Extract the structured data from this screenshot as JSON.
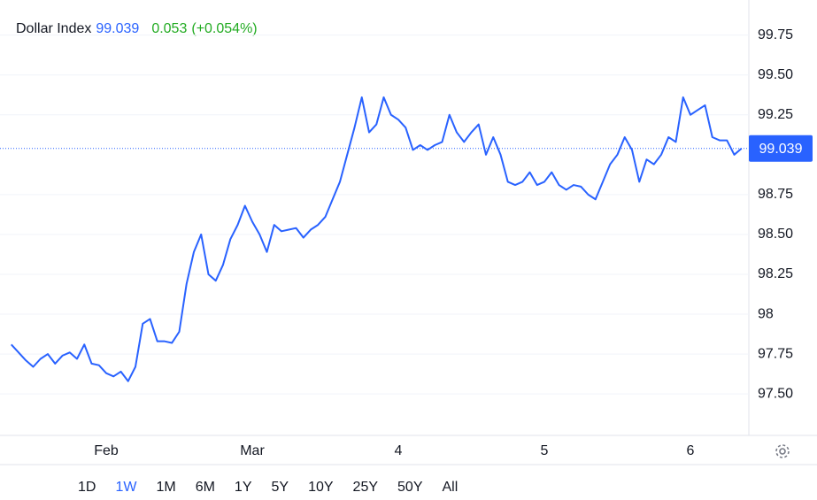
{
  "chart_data": {
    "type": "line",
    "title": "Dollar Index",
    "price": 99.039,
    "change": "0.053",
    "change_pct": "(+0.054%)",
    "color": "#2962ff",
    "categories": [
      null,
      null,
      null,
      null,
      null,
      null,
      null,
      null,
      null,
      null,
      null,
      null,
      null,
      "Feb",
      null,
      null,
      null,
      null,
      null,
      null,
      null,
      null,
      null,
      null,
      null,
      null,
      null,
      null,
      null,
      null,
      null,
      null,
      null,
      "Mar",
      null,
      null,
      null,
      null,
      null,
      null,
      null,
      null,
      null,
      null,
      null,
      null,
      null,
      null,
      null,
      null,
      null,
      null,
      null,
      "4",
      null,
      null,
      null,
      null,
      null,
      null,
      null,
      null,
      null,
      null,
      null,
      null,
      null,
      null,
      null,
      null,
      null,
      null,
      null,
      "5",
      null,
      null,
      null,
      null,
      null,
      null,
      null,
      null,
      null,
      null,
      null,
      null,
      null,
      null,
      null,
      null,
      null,
      null,
      null,
      "6",
      null,
      null,
      null,
      null,
      null,
      null,
      null
    ],
    "values": [
      97.81,
      97.76,
      97.71,
      97.67,
      97.72,
      97.75,
      97.69,
      97.74,
      97.76,
      97.72,
      97.81,
      97.69,
      97.68,
      97.63,
      97.61,
      97.64,
      97.58,
      97.67,
      97.94,
      97.97,
      97.83,
      97.83,
      97.82,
      97.89,
      98.19,
      98.39,
      98.5,
      98.25,
      98.21,
      98.31,
      98.47,
      98.56,
      98.68,
      98.58,
      98.5,
      98.39,
      98.56,
      98.52,
      98.53,
      98.54,
      98.48,
      98.53,
      98.56,
      98.61,
      98.72,
      98.83,
      99.0,
      99.17,
      99.36,
      99.14,
      99.19,
      99.36,
      99.25,
      99.22,
      99.17,
      99.03,
      99.06,
      99.03,
      99.06,
      99.08,
      99.25,
      99.14,
      99.08,
      99.14,
      99.19,
      99.0,
      99.11,
      99.0,
      98.83,
      98.81,
      98.83,
      98.89,
      98.81,
      98.83,
      98.89,
      98.81,
      98.78,
      98.81,
      98.8,
      98.75,
      98.72,
      98.83,
      98.94,
      99.0,
      99.11,
      99.03,
      98.83,
      98.97,
      98.94,
      99.0,
      99.11,
      99.08,
      99.36,
      99.25,
      99.28,
      99.31,
      99.11,
      99.09,
      99.09,
      99.0,
      99.039
    ],
    "ylim": [
      97.24,
      99.97
    ],
    "yticks": [
      {
        "value": 99.75,
        "label": "99.75"
      },
      {
        "value": 99.5,
        "label": "99.50"
      },
      {
        "value": 99.25,
        "label": "99.25"
      },
      {
        "value": 98.75,
        "label": "98.75"
      },
      {
        "value": 98.5,
        "label": "98.50"
      },
      {
        "value": 98.25,
        "label": "98.25"
      },
      98,
      {
        "value": 97.75,
        "label": "97.75"
      },
      {
        "value": 97.5,
        "label": "97.50"
      }
    ],
    "grid": true,
    "ranges": [
      "1D",
      "1W",
      "1M",
      "6M",
      "1Y",
      "5Y",
      "10Y",
      "25Y",
      "50Y",
      "All"
    ],
    "active_range": "1W"
  }
}
